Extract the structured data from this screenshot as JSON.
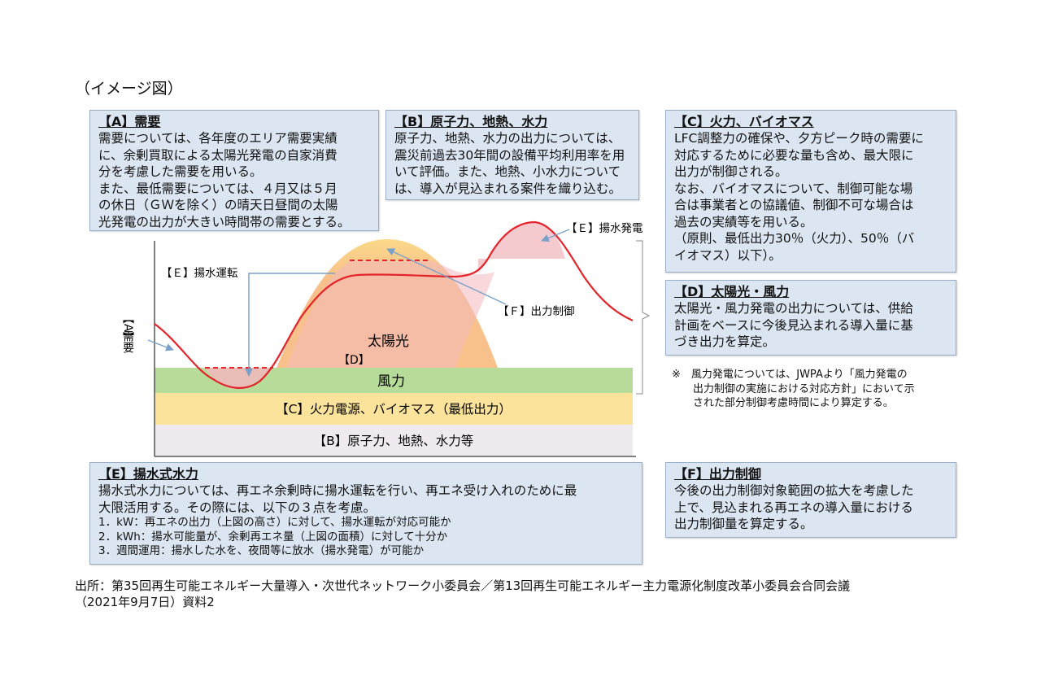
{
  "caption": "（イメージ図）",
  "boxes": {
    "a": {
      "title": "【A】需要",
      "body": "需要については、各年度のエリア需要実績\nに、余剰買取による太陽光発電の自家消費\n分を考慮した需要を用いる。\nまた、最低需要については、４月又は５月\nの休日（ＧＷを除く）の晴天日昼間の太陽\n光発電の出力が大きい時間帯の需要とする。"
    },
    "b": {
      "title": "【B】原子力、地熱、水力",
      "body": "原子力、地熱、水力の出力については、\n震災前過去30年間の設備平均利用率を用\nいて評価。また、地熱、小水力について\nは、導入が見込まれる案件を織り込む。"
    },
    "c": {
      "title": "【C】火力、バイオマス",
      "body": "LFC調整力の確保や、夕方ピーク時の需要に\n対応するために必要な量も含め、最大限に\n出力が制御される。\nなお、バイオマスについて、制御可能な場\n合は事業者との協議値、制御不可な場合は\n過去の実績等を用いる。\n（原則、最低出力30％（火力）、50％（バ\nイオマス）以下）。"
    },
    "d": {
      "title": "【D】太陽光・風力",
      "body": "太陽光・風力発電の出力については、供給\n計画をベースに今後見込まれる導入量に基\nづき出力を算定。"
    },
    "e": {
      "title": "【E】揚水式水力",
      "body": "揚水式水力については、再エネ余剰時に揚水運転を行い、再エネ受け入れのために最\n大限活用する。その際には、以下の３点を考慮。",
      "items": "1．kW：再エネの出力（上図の高さ）に対して、揚水運転が対応可能か\n2．kWh：揚水可能量が、余剰再エネ量（上図の面積）に対して十分か\n3．週間運用：揚水した水を、夜間等に放水（揚水発電）が可能か"
    },
    "f": {
      "title": "【F】出力制御",
      "body": "今後の出力制御対象範囲の拡大を考慮した\n上で、見込まれる再エネの導入量における\n出力制御量を算定する。"
    }
  },
  "note": "※　風力発電については、JWPAより「風力発電の\n　　出力制御の実施における対応方針」において示\n　　された部分制御考慮時間により算定する。",
  "diagram": {
    "labels": {
      "demand_a": "【A】",
      "demand_word": "需要",
      "pumping_op": "【Ｅ】揚水運転",
      "pumping_gen": "【Ｅ】揚水発電",
      "curtail": "【Ｆ】出力制御",
      "solar": "太陽光",
      "solar_d": "【D】",
      "wind": "風力",
      "thermal": "【C】火力電源、バイオマス（最低出力）",
      "nuclear": "【B】原子力、地熱、水力等"
    },
    "colors": {
      "solar": "#f8c08a",
      "solar_top": "#fbd98a",
      "wind": "#b7dc9a",
      "thermal": "#fbe39b",
      "nuclear": "#eeeaf0",
      "pink": "#f2b8bd",
      "demand_line": "#e3242b",
      "arrow": "#7aa0c8"
    }
  },
  "source": "出所：第35回再生可能エネルギー大量導入・次世代ネットワーク小委員会／第13回再生可能エネルギー主力電源化制度改革小委員会合同会議\n（2021年9月7日）資料2"
}
